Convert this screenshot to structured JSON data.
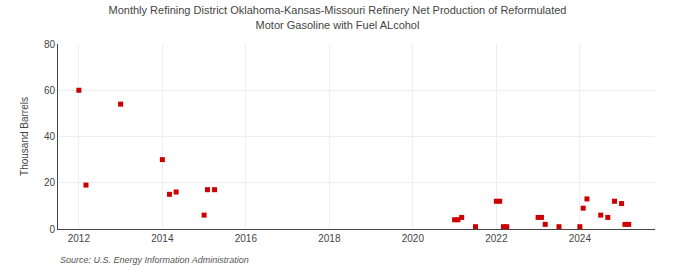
{
  "chart_data": {
    "type": "scatter",
    "title": "Monthly Refining District Oklahoma-Kansas-Missouri Refinery Net Production of Reformulated\nMotor Gasoline with Fuel ALcohol",
    "ylabel": "Thousand Barrels",
    "annotations": [
      "Source: U.S. Energy Information Administration"
    ],
    "x": [
      2012.0,
      2012.17,
      2013.0,
      2014.0,
      2014.17,
      2014.33,
      2015.0,
      2015.08,
      2015.25,
      2021.0,
      2021.08,
      2021.17,
      2021.5,
      2022.0,
      2022.08,
      2022.17,
      2022.25,
      2023.0,
      2023.08,
      2023.17,
      2023.5,
      2024.0,
      2024.08,
      2024.17,
      2024.5,
      2024.67,
      2024.83,
      2025.0,
      2025.08,
      2025.17
    ],
    "values": [
      60,
      19,
      54,
      30,
      15,
      16,
      6,
      17,
      17,
      4,
      4,
      5,
      1,
      12,
      12,
      1,
      1,
      5,
      5,
      2,
      1,
      1,
      9,
      13,
      6,
      5,
      12,
      11,
      2,
      2
    ],
    "color": "#cc0000",
    "marker": "square",
    "xlim": [
      2011.5,
      2025.8
    ],
    "xticks": [
      2012,
      2014,
      2016,
      2018,
      2020,
      2022,
      2024
    ],
    "ylim": [
      0,
      80
    ],
    "yticks": [
      0,
      20,
      40,
      60,
      80
    ],
    "grid": true
  }
}
